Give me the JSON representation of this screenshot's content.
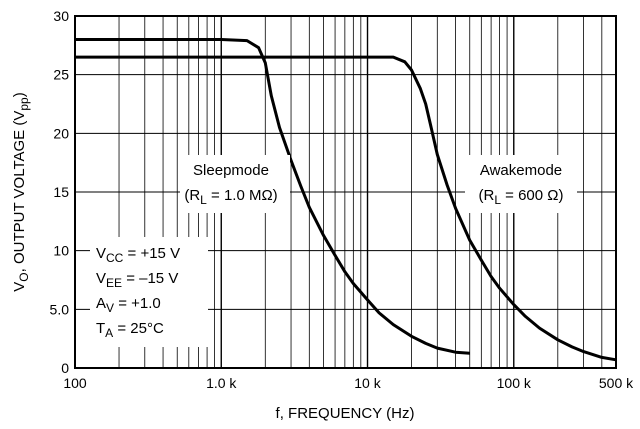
{
  "chart_data": {
    "type": "line",
    "xlabel": "f, FREQUENCY (Hz)",
    "ylabel": "VO, OUTPUT VOLTAGE (Vpp)",
    "xscale": "log",
    "xlim": [
      100,
      500000
    ],
    "ylim": [
      0,
      30
    ],
    "grid": true,
    "x_ticks": [
      {
        "value": 100,
        "label": "100"
      },
      {
        "value": 1000,
        "label": "1.0 k"
      },
      {
        "value": 10000,
        "label": "10 k"
      },
      {
        "value": 100000,
        "label": "100 k"
      },
      {
        "value": 500000,
        "label": "500 k"
      }
    ],
    "y_ticks": [
      {
        "value": 0,
        "label": "0"
      },
      {
        "value": 5,
        "label": "5.0"
      },
      {
        "value": 10,
        "label": "10"
      },
      {
        "value": 15,
        "label": "15"
      },
      {
        "value": 20,
        "label": "20"
      },
      {
        "value": 25,
        "label": "25"
      },
      {
        "value": 30,
        "label": "30"
      }
    ],
    "series": [
      {
        "name": "Sleepmode",
        "points": [
          [
            100,
            28.0
          ],
          [
            1000,
            28.0
          ],
          [
            1500,
            27.9
          ],
          [
            1800,
            27.3
          ],
          [
            2000,
            26.0
          ],
          [
            2200,
            23.2
          ],
          [
            2500,
            20.5
          ],
          [
            3000,
            17.7
          ],
          [
            3500,
            15.5
          ],
          [
            4000,
            13.7
          ],
          [
            5000,
            11.3
          ],
          [
            6000,
            9.6
          ],
          [
            7000,
            8.2
          ],
          [
            8000,
            7.2
          ],
          [
            10000,
            5.8
          ],
          [
            12000,
            4.7
          ],
          [
            15000,
            3.7
          ],
          [
            20000,
            2.7
          ],
          [
            25000,
            2.1
          ],
          [
            30000,
            1.7
          ],
          [
            40000,
            1.35
          ],
          [
            50000,
            1.25
          ]
        ]
      },
      {
        "name": "Awakemode",
        "points": [
          [
            100,
            26.5
          ],
          [
            10000,
            26.5
          ],
          [
            15000,
            26.5
          ],
          [
            18000,
            26.1
          ],
          [
            20000,
            25.4
          ],
          [
            23000,
            23.8
          ],
          [
            25000,
            22.5
          ],
          [
            27000,
            20.7
          ],
          [
            30000,
            18.2
          ],
          [
            35000,
            15.6
          ],
          [
            40000,
            13.6
          ],
          [
            50000,
            10.9
          ],
          [
            60000,
            9.2
          ],
          [
            70000,
            7.8
          ],
          [
            80000,
            6.8
          ],
          [
            100000,
            5.4
          ],
          [
            120000,
            4.4
          ],
          [
            150000,
            3.4
          ],
          [
            200000,
            2.4
          ],
          [
            250000,
            1.8
          ],
          [
            300000,
            1.4
          ],
          [
            400000,
            0.9
          ],
          [
            500000,
            0.7
          ]
        ]
      }
    ],
    "annotations": {
      "sleep_title": "Sleepmode",
      "sleep_cond_prefix": "(R",
      "sleep_cond_sub": "L",
      "sleep_cond_suffix": " = 1.0 MΩ)",
      "awake_title": "Awakemode",
      "awake_cond_prefix": "(R",
      "awake_cond_sub": "L",
      "awake_cond_suffix": " = 600 Ω)",
      "conditions": [
        {
          "prefix": "V",
          "sub": "CC",
          "suffix": " = +15 V"
        },
        {
          "prefix": "V",
          "sub": "EE",
          "suffix": " = –15 V"
        },
        {
          "prefix": "A",
          "sub": "V",
          "suffix": " = +1.0"
        },
        {
          "prefix": "T",
          "sub": "A",
          "suffix": " = 25°C"
        }
      ]
    },
    "ylabel_parts": {
      "v": "V",
      "v_sub": "O",
      "mid": ", OUTPUT VOLTAGE (V",
      "pp_sub": "pp",
      "end": ")"
    }
  }
}
